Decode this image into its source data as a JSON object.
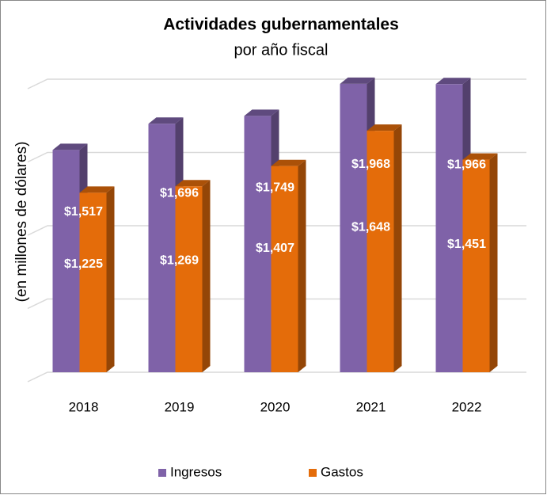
{
  "chart_data": {
    "type": "bar3d",
    "title": "Actividades gubernamentales",
    "subtitle": "por año fiscal",
    "y_label": "(en millones de dólares)",
    "categories": [
      "2018",
      "2019",
      "2020",
      "2021",
      "2022"
    ],
    "series": [
      {
        "name": "Ingresos",
        "color": "#7f62a8",
        "values": [
          1517,
          1696,
          1749,
          1968,
          1966
        ],
        "value_labels": [
          "$1,517",
          "$1,696",
          "$1,749",
          "$1,968",
          "$1,966"
        ]
      },
      {
        "name": "Gastos",
        "color": "#e46c0a",
        "values": [
          1225,
          1269,
          1407,
          1648,
          1451
        ],
        "value_labels": [
          "$1,225",
          "$1,269",
          "$1,407",
          "$1,648",
          "$1,451"
        ]
      }
    ],
    "ylim": [
      0,
      2000
    ],
    "yticks": [
      0,
      500,
      1000,
      1500,
      2000
    ],
    "grid": true,
    "legend": "bottom"
  }
}
